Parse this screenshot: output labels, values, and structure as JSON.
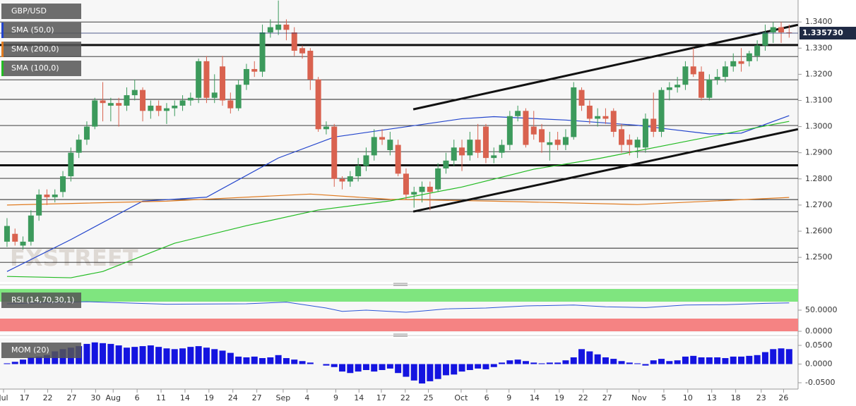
{
  "chart_data": [
    {
      "type": "candlestick",
      "title": "GBP/USD",
      "watermark": "FXSTREET",
      "up_color": "#3c9a5c",
      "down_color": "#d9624f",
      "xlim": [
        -0.88,
        99.12
      ],
      "ylim": [
        1.2406,
        1.3484
      ],
      "yticks": [
        {
          "value": 1.34,
          "label": "1.3400"
        },
        {
          "value": 1.33,
          "label": "1.3300"
        },
        {
          "value": 1.32,
          "label": "1.3200"
        },
        {
          "value": 1.31,
          "label": "1.3100"
        },
        {
          "value": 1.3,
          "label": "1.3000"
        },
        {
          "value": 1.29,
          "label": "1.2900"
        },
        {
          "value": 1.28,
          "label": "1.2800"
        },
        {
          "value": 1.27,
          "label": "1.2700"
        },
        {
          "value": 1.26,
          "label": "1.2600"
        },
        {
          "value": 1.25,
          "label": "1.2500"
        }
      ],
      "xticks": [
        {
          "value": -0.44,
          "label": "Jul"
        },
        {
          "value": 2.2,
          "label": "17"
        },
        {
          "value": 5.1,
          "label": "22"
        },
        {
          "value": 8.1,
          "label": "27"
        },
        {
          "value": 11.1,
          "label": "30"
        },
        {
          "value": 13.3,
          "label": "Aug"
        },
        {
          "value": 16.3,
          "label": "6"
        },
        {
          "value": 19.3,
          "label": "11"
        },
        {
          "value": 22.3,
          "label": "14"
        },
        {
          "value": 25.3,
          "label": "19"
        },
        {
          "value": 28.3,
          "label": "24"
        },
        {
          "value": 31.3,
          "label": "27"
        },
        {
          "value": 34.6,
          "label": "Sep"
        },
        {
          "value": 37.6,
          "label": "4"
        },
        {
          "value": 41.2,
          "label": "9"
        },
        {
          "value": 44.1,
          "label": "14"
        },
        {
          "value": 46.9,
          "label": "17"
        },
        {
          "value": 49.9,
          "label": "22"
        },
        {
          "value": 52.8,
          "label": "25"
        },
        {
          "value": 56.9,
          "label": "Oct"
        },
        {
          "value": 60.1,
          "label": "6"
        },
        {
          "value": 62.9,
          "label": "9"
        },
        {
          "value": 66.1,
          "label": "14"
        },
        {
          "value": 69.2,
          "label": "19"
        },
        {
          "value": 72.2,
          "label": "22"
        },
        {
          "value": 75.2,
          "label": "27"
        },
        {
          "value": 79.2,
          "label": "Nov"
        },
        {
          "value": 82.3,
          "label": "5"
        },
        {
          "value": 85.3,
          "label": "10"
        },
        {
          "value": 88.3,
          "label": "13"
        },
        {
          "value": 91.3,
          "label": "18"
        },
        {
          "value": 94.5,
          "label": "23"
        },
        {
          "value": 97.3,
          "label": "26"
        }
      ],
      "last_price": {
        "value": 1.33573,
        "label": "1.335730"
      },
      "levels": [
        1.34,
        1.3268,
        1.3179,
        1.3104,
        1.3004,
        1.2904,
        1.2802,
        1.2721,
        1.2675,
        1.2535,
        1.2481
      ],
      "key_levels": [
        1.3312,
        1.2852
      ],
      "trendlines": [
        [
          [
            50.9,
            1.3066
          ],
          [
            99.1,
            1.3389
          ]
        ],
        [
          [
            50.9,
            1.2675
          ],
          [
            99.1,
            1.299
          ]
        ]
      ],
      "ohlc": [
        [
          1.256,
          1.265,
          1.254,
          1.262
        ],
        [
          1.259,
          1.261,
          1.2545,
          1.256
        ],
        [
          1.2545,
          1.258,
          1.253,
          1.256
        ],
        [
          1.256,
          1.268,
          1.2545,
          1.266
        ],
        [
          1.266,
          1.276,
          1.264,
          1.274
        ],
        [
          1.274,
          1.276,
          1.27,
          1.273
        ],
        [
          1.273,
          1.276,
          1.271,
          1.274
        ],
        [
          1.275,
          1.283,
          1.273,
          1.281
        ],
        [
          1.281,
          1.292,
          1.279,
          1.29
        ],
        [
          1.29,
          1.297,
          1.288,
          1.295
        ],
        [
          1.295,
          1.302,
          1.293,
          1.3
        ],
        [
          1.3,
          1.311,
          1.299,
          1.31
        ],
        [
          1.31,
          1.317,
          1.302,
          1.309
        ],
        [
          1.308,
          1.311,
          1.302,
          1.309
        ],
        [
          1.309,
          1.311,
          1.3,
          1.308
        ],
        [
          1.308,
          1.315,
          1.306,
          1.312
        ],
        [
          1.312,
          1.318,
          1.31,
          1.314
        ],
        [
          1.314,
          1.315,
          1.302,
          1.306
        ],
        [
          1.306,
          1.31,
          1.303,
          1.308
        ],
        [
          1.308,
          1.31,
          1.304,
          1.306
        ],
        [
          1.306,
          1.309,
          1.301,
          1.307
        ],
        [
          1.307,
          1.31,
          1.304,
          1.308
        ],
        [
          1.308,
          1.312,
          1.306,
          1.31
        ],
        [
          1.31,
          1.313,
          1.308,
          1.311
        ],
        [
          1.311,
          1.326,
          1.309,
          1.325
        ],
        [
          1.325,
          1.327,
          1.309,
          1.311
        ],
        [
          1.311,
          1.32,
          1.309,
          1.313
        ],
        [
          1.323,
          1.327,
          1.308,
          1.31
        ],
        [
          1.31,
          1.313,
          1.305,
          1.307
        ],
        [
          1.307,
          1.318,
          1.306,
          1.316
        ],
        [
          1.316,
          1.324,
          1.314,
          1.322
        ],
        [
          1.322,
          1.325,
          1.319,
          1.321
        ],
        [
          1.321,
          1.339,
          1.319,
          1.336
        ],
        [
          1.336,
          1.341,
          1.334,
          1.338
        ],
        [
          1.337,
          1.3482,
          1.335,
          1.339
        ],
        [
          1.339,
          1.341,
          1.333,
          1.337
        ],
        [
          1.336,
          1.338,
          1.327,
          1.329
        ],
        [
          1.33,
          1.331,
          1.326,
          1.328
        ],
        [
          1.329,
          1.33,
          1.314,
          1.318
        ],
        [
          1.318,
          1.319,
          1.298,
          1.299
        ],
        [
          1.299,
          1.302,
          1.297,
          1.3
        ],
        [
          1.3,
          1.301,
          1.277,
          1.28
        ],
        [
          1.28,
          1.281,
          1.276,
          1.279
        ],
        [
          1.279,
          1.283,
          1.277,
          1.281
        ],
        [
          1.281,
          1.288,
          1.279,
          1.285
        ],
        [
          1.285,
          1.292,
          1.283,
          1.289
        ],
        [
          1.289,
          1.299,
          1.287,
          1.296
        ],
        [
          1.296,
          1.299,
          1.293,
          1.295
        ],
        [
          1.291,
          1.298,
          1.289,
          1.295
        ],
        [
          1.293,
          1.295,
          1.281,
          1.282
        ],
        [
          1.282,
          1.284,
          1.272,
          1.274
        ],
        [
          1.274,
          1.277,
          1.269,
          1.275
        ],
        [
          1.275,
          1.279,
          1.271,
          1.277
        ],
        [
          1.277,
          1.279,
          1.268,
          1.275
        ],
        [
          1.276,
          1.286,
          1.275,
          1.284
        ],
        [
          1.284,
          1.29,
          1.282,
          1.287
        ],
        [
          1.287,
          1.295,
          1.285,
          1.292
        ],
        [
          1.292,
          1.295,
          1.283,
          1.289
        ],
        [
          1.289,
          1.298,
          1.287,
          1.295
        ],
        [
          1.295,
          1.301,
          1.288,
          1.29
        ],
        [
          1.3,
          1.301,
          1.286,
          1.288
        ],
        [
          1.288,
          1.292,
          1.286,
          1.289
        ],
        [
          1.29,
          1.295,
          1.288,
          1.293
        ],
        [
          1.293,
          1.306,
          1.291,
          1.304
        ],
        [
          1.304,
          1.308,
          1.302,
          1.306
        ],
        [
          1.306,
          1.307,
          1.292,
          1.293
        ],
        [
          1.3,
          1.306,
          1.295,
          1.297
        ],
        [
          1.299,
          1.301,
          1.29,
          1.294
        ],
        [
          1.293,
          1.298,
          1.287,
          1.294
        ],
        [
          1.295,
          1.298,
          1.291,
          1.293
        ],
        [
          1.293,
          1.299,
          1.291,
          1.296
        ],
        [
          1.296,
          1.317,
          1.295,
          1.315
        ],
        [
          1.314,
          1.315,
          1.306,
          1.308
        ],
        [
          1.308,
          1.31,
          1.301,
          1.303
        ],
        [
          1.303,
          1.307,
          1.3,
          1.304
        ],
        [
          1.304,
          1.307,
          1.301,
          1.303
        ],
        [
          1.306,
          1.307,
          1.296,
          1.298
        ],
        [
          1.299,
          1.301,
          1.29,
          1.293
        ],
        [
          1.295,
          1.297,
          1.289,
          1.293
        ],
        [
          1.292,
          1.296,
          1.288,
          1.295
        ],
        [
          1.292,
          1.305,
          1.29,
          1.303
        ],
        [
          1.303,
          1.313,
          1.296,
          1.298
        ],
        [
          1.298,
          1.315,
          1.296,
          1.314
        ],
        [
          1.314,
          1.317,
          1.31,
          1.315
        ],
        [
          1.315,
          1.319,
          1.313,
          1.316
        ],
        [
          1.316,
          1.325,
          1.314,
          1.323
        ],
        [
          1.323,
          1.33,
          1.319,
          1.32
        ],
        [
          1.321,
          1.323,
          1.31,
          1.311
        ],
        [
          1.311,
          1.32,
          1.31,
          1.318
        ],
        [
          1.318,
          1.322,
          1.316,
          1.319
        ],
        [
          1.319,
          1.325,
          1.317,
          1.323
        ],
        [
          1.323,
          1.328,
          1.321,
          1.325
        ],
        [
          1.325,
          1.33,
          1.321,
          1.324
        ],
        [
          1.325,
          1.329,
          1.323,
          1.328
        ],
        [
          1.327,
          1.333,
          1.325,
          1.331
        ],
        [
          1.331,
          1.339,
          1.329,
          1.336
        ],
        [
          1.336,
          1.34,
          1.332,
          1.338
        ],
        [
          1.338,
          1.34,
          1.332,
          1.336
        ],
        [
          1.336,
          1.339,
          1.334,
          1.33573
        ]
      ],
      "series": [
        {
          "name": "SMA (50,0)",
          "color": "#2244cc",
          "x": [
            0,
            8,
            17,
            25,
            34,
            41,
            49,
            57,
            61,
            70,
            79,
            83,
            88,
            92,
            98
          ],
          "values": [
            1.2446,
            1.2568,
            1.2715,
            1.273,
            1.288,
            1.296,
            1.2995,
            1.303,
            1.3038,
            1.3025,
            1.3005,
            1.299,
            1.2972,
            1.2975,
            1.3042
          ]
        },
        {
          "name": "SMA (200,0)",
          "color": "#e07b20",
          "x": [
            0,
            20,
            38,
            48,
            61,
            79,
            98
          ],
          "values": [
            1.27,
            1.2715,
            1.2742,
            1.2722,
            1.2715,
            1.2702,
            1.2729
          ]
        },
        {
          "name": "SMA (100,0)",
          "color": "#22bb22",
          "x": [
            0,
            8,
            12,
            21,
            30,
            39,
            48,
            57,
            66,
            74,
            83,
            92,
            98
          ],
          "values": [
            1.2427,
            1.2422,
            1.2446,
            1.2554,
            1.2621,
            1.2681,
            1.2716,
            1.2769,
            1.2837,
            1.2877,
            1.2931,
            1.2985,
            1.302
          ]
        }
      ]
    },
    {
      "type": "line",
      "title": "RSI (14,70,30,1)",
      "color": "#2b55d6",
      "xlim": [
        -0.88,
        99.12
      ],
      "ylim": [
        0,
        100
      ],
      "yticks": [
        {
          "value": 50,
          "label": "50.0000"
        },
        {
          "value": 0,
          "label": "0.0000"
        }
      ],
      "overbought": 70,
      "oversold": 30,
      "overbought_color": "#7fe57f",
      "oversold_color": "#f58383",
      "x": [
        0,
        10,
        20,
        30,
        35,
        40,
        42,
        45,
        50,
        52,
        55,
        60,
        65,
        71,
        75,
        80,
        85,
        90,
        95,
        98
      ],
      "values": [
        65,
        70,
        64,
        65,
        69,
        55,
        47,
        50,
        45,
        48,
        53,
        55,
        60,
        62,
        58,
        56,
        62,
        63,
        66,
        67
      ]
    },
    {
      "type": "bar",
      "title": "MOM (20)",
      "color": "#1414e0",
      "xlim": [
        -0.88,
        99.12
      ],
      "ylim": [
        -0.0632,
        0.0689
      ],
      "yticks": [
        {
          "value": 0.05,
          "label": "0.0500"
        },
        {
          "value": 0,
          "label": "0.0000"
        },
        {
          "value": -0.05,
          "label": "-0.0500"
        }
      ],
      "values": [
        0.002,
        0.006,
        0.012,
        0.018,
        0.02,
        0.024,
        0.034,
        0.04,
        0.044,
        0.048,
        0.054,
        0.058,
        0.056,
        0.054,
        0.05,
        0.044,
        0.046,
        0.048,
        0.05,
        0.046,
        0.042,
        0.04,
        0.042,
        0.046,
        0.048,
        0.044,
        0.04,
        0.036,
        0.03,
        0.02,
        0.018,
        0.02,
        0.016,
        0.018,
        0.024,
        0.016,
        0.012,
        0.008,
        0.004,
        0,
        -0.004,
        -0.008,
        -0.02,
        -0.024,
        -0.02,
        -0.016,
        -0.02,
        -0.016,
        -0.012,
        -0.024,
        -0.034,
        -0.044,
        -0.052,
        -0.046,
        -0.04,
        -0.03,
        -0.028,
        -0.02,
        -0.016,
        -0.012,
        -0.014,
        -0.008,
        0.004,
        0.01,
        0.012,
        0.008,
        0.004,
        0.002,
        0.004,
        0.004,
        0.01,
        0.018,
        0.04,
        0.034,
        0.026,
        0.018,
        0.014,
        0.008,
        0.004,
        0.002,
        -0.004,
        0.01,
        0.014,
        0.008,
        0.01,
        0.02,
        0.022,
        0.018,
        0.018,
        0.018,
        0.016,
        0.02,
        0.02,
        0.022,
        0.024,
        0.032,
        0.04,
        0.042,
        0.04
      ]
    }
  ]
}
